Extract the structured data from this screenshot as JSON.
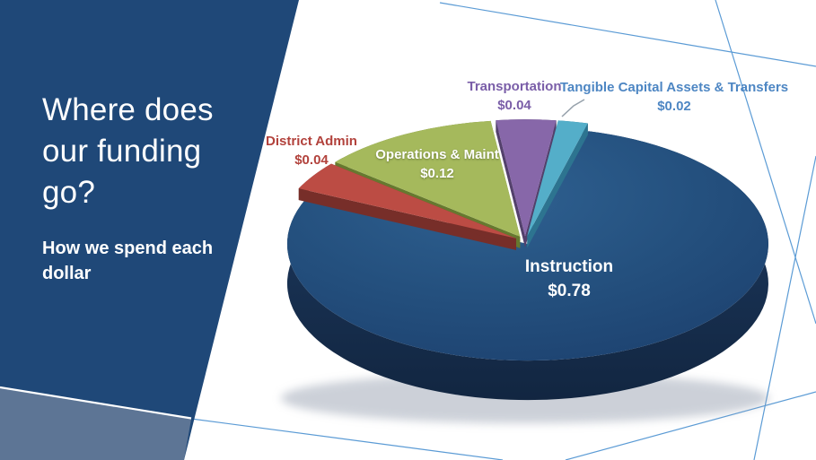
{
  "slide": {
    "title_lines": [
      "Where does",
      "our funding",
      "go?"
    ],
    "title_color": "#ffffff",
    "subtitle_lines": [
      "How we spend each",
      "dollar"
    ],
    "subtitle_color": "#ffffff",
    "panel_color": "#1f4878",
    "panel_accent_color": "#5d7595",
    "panel_divider_color": "#ffffff",
    "decor_line_color": "#5b9bd5",
    "background_color": "#ffffff",
    "border_color": "#000000"
  },
  "chart_data": {
    "type": "pie",
    "style": "3d_exploded",
    "units": "share of each dollar spent",
    "legend": "none",
    "labels_show": "category_name_and_value",
    "start_angle_deg_clockwise_from_top": -7,
    "clockwise_order_from_top": [
      "Transportation",
      "Tangible Capital Assets & Transfers",
      "Instruction",
      "District Admin",
      "Operations & Maint"
    ],
    "slices": [
      {
        "label": "Instruction",
        "value": 0.78,
        "value_text": "$0.78",
        "color": "#24507e",
        "side_color": "#15294a",
        "label_color": "#ffffff",
        "label_position": "inside"
      },
      {
        "label": "Operations & Maint",
        "value": 0.12,
        "value_text": "$0.12",
        "color": "#a5b95c",
        "side_color": "#66792f",
        "label_color": "#ffffff",
        "label_position": "inside"
      },
      {
        "label": "District Admin",
        "value": 0.04,
        "value_text": "$0.04",
        "color": "#bc4c44",
        "side_color": "#772e29",
        "label_color": "#b2423c",
        "label_position": "outside"
      },
      {
        "label": "Transportation",
        "value": 0.04,
        "value_text": "$0.04",
        "color": "#8767a9",
        "side_color": "#53406c",
        "label_color": "#7a5ea8",
        "label_position": "outside"
      },
      {
        "label": "Tangible Capital Assets & Transfers",
        "value": 0.02,
        "value_text": "$0.02",
        "color": "#54aec9",
        "side_color": "#2d7490",
        "label_color": "#4d86c3",
        "label_position": "outside"
      }
    ]
  }
}
